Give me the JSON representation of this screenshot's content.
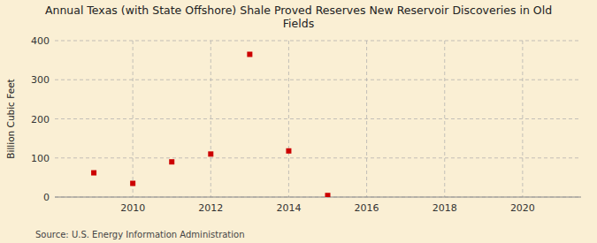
{
  "chart_data": {
    "type": "scatter",
    "title": "Annual Texas (with State Offshore) Shale Proved Reserves New Reservoir Discoveries in Old\nFields",
    "ylabel": "Billion Cubic Feet",
    "source": "Source: U.S. Energy Information Administration",
    "x": [
      2009,
      2010,
      2011,
      2012,
      2013,
      2014,
      2015
    ],
    "values": [
      62,
      35,
      90,
      110,
      365,
      118,
      4
    ],
    "color": "#cc0000",
    "marker": "square",
    "xlim": [
      2008.0,
      2021.5
    ],
    "ylim": [
      0,
      400
    ],
    "xticks": [
      2010,
      2012,
      2014,
      2016,
      2018,
      2020
    ],
    "yticks": [
      0,
      100,
      200,
      300,
      400
    ],
    "grid": true
  }
}
